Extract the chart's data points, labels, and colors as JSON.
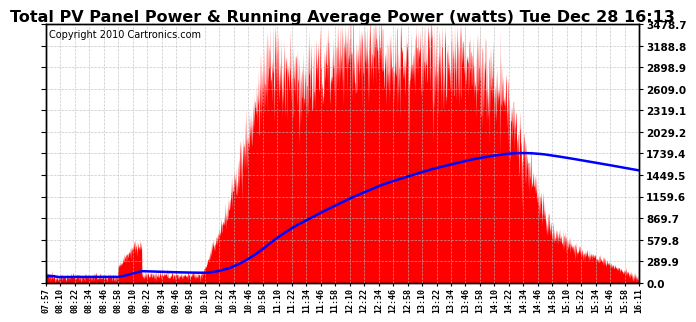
{
  "title": "Total PV Panel Power & Running Average Power (watts) Tue Dec 28 16:13",
  "copyright": "Copyright 2010 Cartronics.com",
  "y_max": 3478.7,
  "y_ticks": [
    0.0,
    289.9,
    579.8,
    869.7,
    1159.6,
    1449.5,
    1739.4,
    2029.2,
    2319.1,
    2609.0,
    2898.9,
    3188.8,
    3478.7
  ],
  "x_labels": [
    "07:57",
    "08:10",
    "08:22",
    "08:34",
    "08:46",
    "08:58",
    "09:10",
    "09:22",
    "09:34",
    "09:46",
    "09:58",
    "10:10",
    "10:22",
    "10:34",
    "10:46",
    "10:58",
    "11:10",
    "11:22",
    "11:34",
    "11:46",
    "11:58",
    "12:10",
    "12:22",
    "12:34",
    "12:46",
    "12:58",
    "13:10",
    "13:22",
    "13:34",
    "13:46",
    "13:58",
    "14:10",
    "14:22",
    "14:34",
    "14:46",
    "14:58",
    "15:10",
    "15:22",
    "15:34",
    "15:46",
    "15:58",
    "16:11"
  ],
  "background_color": "#ffffff",
  "area_color": "#ff0000",
  "line_color": "#0000ff",
  "grid_color": "#bbbbbb",
  "title_fontsize": 11.5,
  "copyright_fontsize": 7
}
